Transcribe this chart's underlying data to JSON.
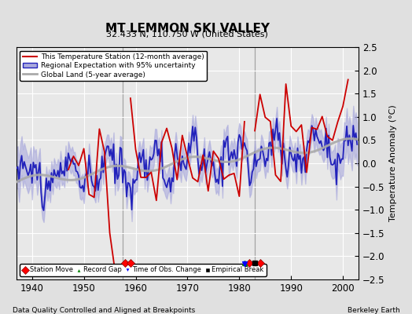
{
  "title": "MT LEMMON SKI VALLEY",
  "subtitle": "32.433 N, 110.750 W (United States)",
  "xlabel_left": "Data Quality Controlled and Aligned at Breakpoints",
  "xlabel_right": "Berkeley Earth",
  "ylabel": "Temperature Anomaly (°C)",
  "xlim": [
    1937,
    2003
  ],
  "ylim": [
    -2.5,
    2.5
  ],
  "yticks": [
    -2.5,
    -2,
    -1.5,
    -1,
    -0.5,
    0,
    0.5,
    1,
    1.5,
    2,
    2.5
  ],
  "xticks": [
    1940,
    1950,
    1960,
    1970,
    1980,
    1990,
    2000
  ],
  "bg_color": "#e0e0e0",
  "plot_bg_color": "#e8e8e8",
  "grid_color": "#ffffff",
  "station_move_years": [
    1958,
    1959,
    1982,
    1984
  ],
  "obs_change_years": [
    1981
  ],
  "record_gap_years": [
    1981
  ],
  "empirical_break_years": [
    1983
  ],
  "vline_years": [
    1957.5,
    1983.0
  ],
  "red_line_color": "#cc0000",
  "blue_line_color": "#2222bb",
  "blue_band_color": "#aaaadd",
  "gray_line_color": "#aaaaaa",
  "legend_labels": [
    "This Temperature Station (12-month average)",
    "Regional Expectation with 95% uncertainty",
    "Global Land (5-year average)"
  ],
  "marker_y": -2.15
}
